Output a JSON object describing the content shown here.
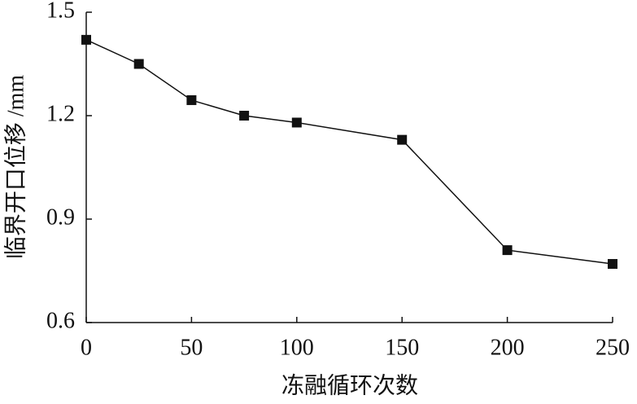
{
  "chart_data": {
    "type": "line",
    "x_label": "冻融循环次数",
    "y_label": "临界开口位移 /mm",
    "x": [
      0,
      25,
      50,
      75,
      100,
      150,
      200,
      250
    ],
    "series": [
      {
        "color": "#111111",
        "values": [
          1.42,
          1.35,
          1.245,
          1.2,
          1.18,
          1.13,
          0.81,
          0.77
        ]
      }
    ],
    "xlim": [
      0,
      250
    ],
    "xticks": [
      0,
      50,
      100,
      150,
      200,
      250
    ],
    "ylim": [
      0.6,
      1.5
    ],
    "yticks": [
      0.6,
      0.9,
      1.2,
      1.5
    ]
  }
}
